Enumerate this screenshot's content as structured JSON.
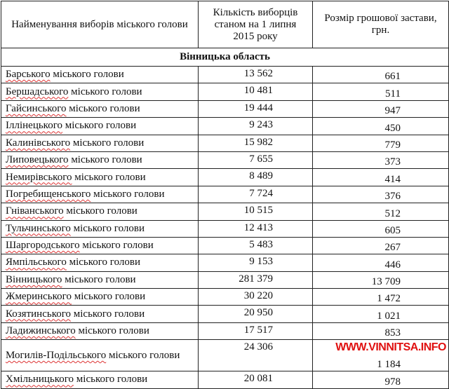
{
  "header": {
    "col1": "Найменування виборів міського голови",
    "col2": "Кількість виборців станом на 1 липня 2015 року",
    "col3": "Розмір грошової застави, грн."
  },
  "region": "Вінницька область",
  "rows": [
    {
      "name_word": "Барського",
      "name_rest": " міського голови",
      "voters": "13 562",
      "deposit": "661"
    },
    {
      "name_word": "Бершадського",
      "name_rest": " міського голови",
      "voters": "10 481",
      "deposit": "511"
    },
    {
      "name_word": "Гайсинського",
      "name_rest": " міського голови",
      "voters": "19 444",
      "deposit": "947"
    },
    {
      "name_word": "Іллінецького",
      "name_rest": " міського голови",
      "voters": "9 243",
      "deposit": "450"
    },
    {
      "name_word": "Калинівського",
      "name_rest": " міського голови",
      "voters": "15 982",
      "deposit": "779"
    },
    {
      "name_word": "Липовецького",
      "name_rest": " міського голови",
      "voters": "7 655",
      "deposit": "373"
    },
    {
      "name_word": "Немирівського",
      "name_rest": " міського голови",
      "voters": "8 489",
      "deposit": "414"
    },
    {
      "name_word": "Погребищенського",
      "name_rest": " міського голови",
      "voters": "7 724",
      "deposit": "376"
    },
    {
      "name_word": "Гніванського",
      "name_rest": " міського голови",
      "voters": "10 515",
      "deposit": "512"
    },
    {
      "name_word": "Тульчинського",
      "name_rest": " міського голови",
      "voters": "12 413",
      "deposit": "605"
    },
    {
      "name_word": "Шаргородського",
      "name_rest": " міського голови",
      "voters": "5 483",
      "deposit": "267"
    },
    {
      "name_word": "Ямпільського",
      "name_rest": " міського голови",
      "voters": "9 153",
      "deposit": "446"
    },
    {
      "name_word": "Вінницького",
      "name_rest": " міського голови",
      "voters": "281 379",
      "deposit": "13 709"
    },
    {
      "name_word": "Жмеринського",
      "name_rest": " міського голови",
      "voters": "30 220",
      "deposit": "1 472"
    },
    {
      "name_word": "Козятинського",
      "name_rest": " міського голови",
      "voters": "20 950",
      "deposit": "1 021"
    },
    {
      "name_word": "Ладижинського",
      "name_rest": " міського голови",
      "voters": "17 517",
      "deposit": "853"
    },
    {
      "name_word": "Могилів-Подільського",
      "name_rest": " міського голови",
      "voters": "24 306",
      "deposit": "1 184"
    },
    {
      "name_word": "Хмільницького",
      "name_rest": " міського голови",
      "voters": "20 081",
      "deposit": "978"
    }
  ],
  "watermark": "WWW.VINNITSA.INFO",
  "colors": {
    "watermark": "#e01010",
    "spellcheck_underline": "#dd3333"
  }
}
